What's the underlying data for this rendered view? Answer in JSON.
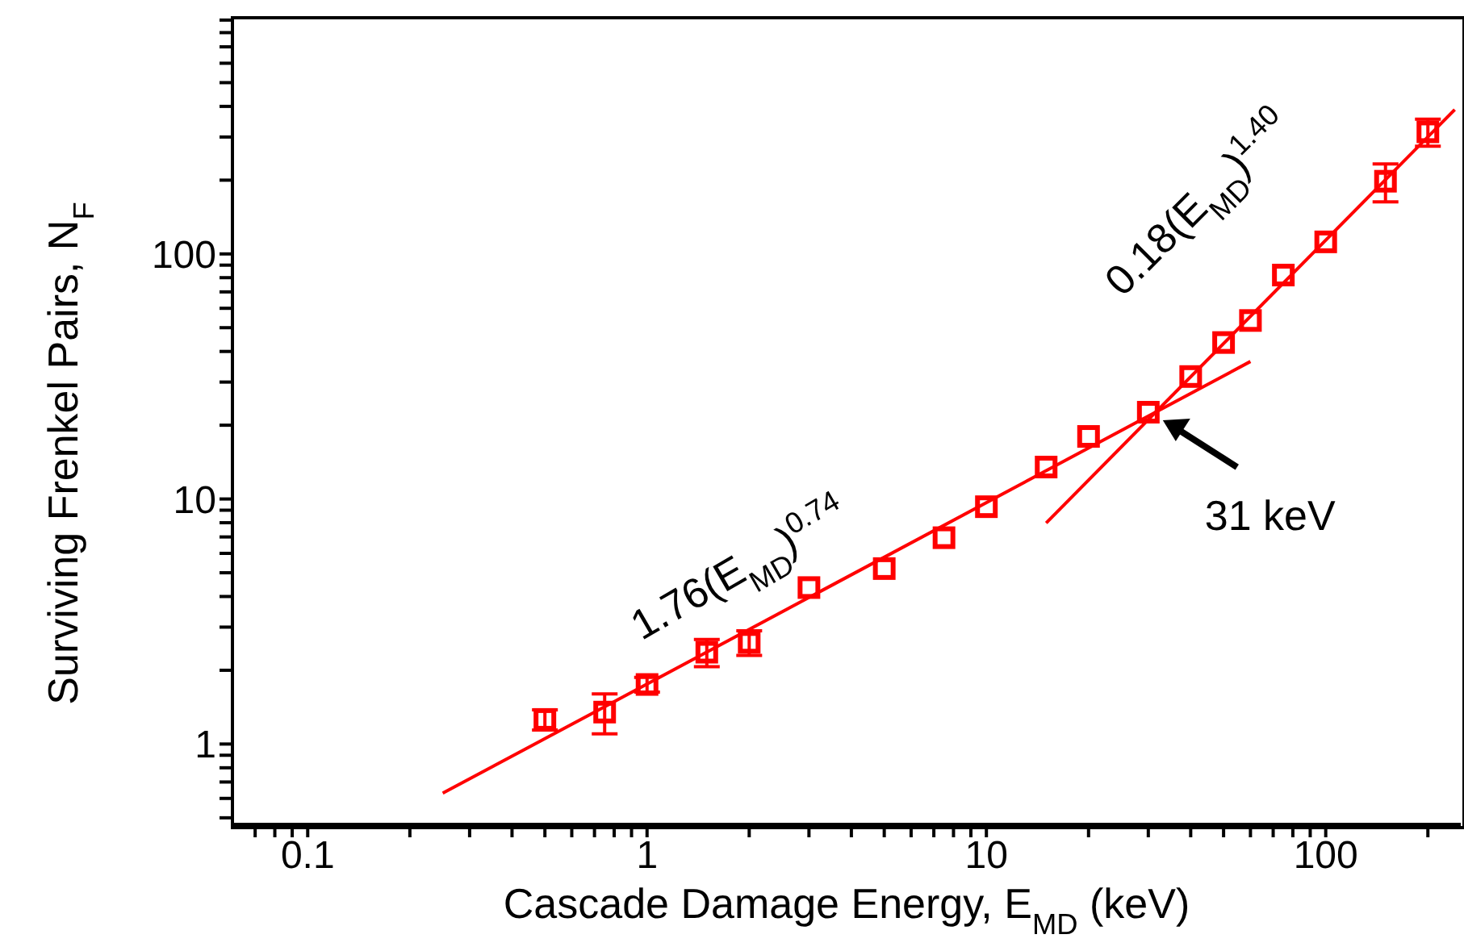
{
  "chart_data": {
    "type": "scatter",
    "xlabel": "Cascade Damage Energy, E$_{MD}$ (keV)",
    "ylabel": "Surviving Frenkel Pairs, N$_{F}$",
    "log": "xy",
    "xlim": [
      0.06,
      250
    ],
    "ylim": [
      0.47,
      920
    ],
    "xticks": [
      {
        "value": 0.07,
        "label": null
      },
      {
        "value": 0.08,
        "label": null
      },
      {
        "value": 0.09,
        "label": null
      },
      0.1,
      {
        "value": 0.2,
        "label": null
      },
      {
        "value": 0.3,
        "label": null
      },
      {
        "value": 0.4,
        "label": null
      },
      {
        "value": 0.5,
        "label": null
      },
      {
        "value": 0.6,
        "label": null
      },
      {
        "value": 0.7,
        "label": null
      },
      {
        "value": 0.8,
        "label": null
      },
      {
        "value": 0.9,
        "label": null
      },
      1,
      {
        "value": 2,
        "label": null
      },
      {
        "value": 3,
        "label": null
      },
      {
        "value": 4,
        "label": null
      },
      {
        "value": 5,
        "label": null
      },
      {
        "value": 6,
        "label": null
      },
      {
        "value": 7,
        "label": null
      },
      {
        "value": 8,
        "label": null
      },
      {
        "value": 9,
        "label": null
      },
      10,
      {
        "value": 20,
        "label": null
      },
      {
        "value": 30,
        "label": null
      },
      {
        "value": 40,
        "label": null
      },
      {
        "value": 50,
        "label": null
      },
      {
        "value": 60,
        "label": null
      },
      {
        "value": 70,
        "label": null
      },
      {
        "value": 80,
        "label": null
      },
      {
        "value": 90,
        "label": null
      },
      100,
      {
        "value": 200,
        "label": null
      }
    ],
    "yticks": [
      {
        "value": 0.5,
        "label": null
      },
      {
        "value": 0.6,
        "label": null
      },
      {
        "value": 0.7,
        "label": null
      },
      {
        "value": 0.8,
        "label": null
      },
      {
        "value": 0.9,
        "label": null
      },
      1,
      {
        "value": 2,
        "label": null
      },
      {
        "value": 3,
        "label": null
      },
      {
        "value": 4,
        "label": null
      },
      {
        "value": 5,
        "label": null
      },
      {
        "value": 6,
        "label": null
      },
      {
        "value": 7,
        "label": null
      },
      {
        "value": 8,
        "label": null
      },
      {
        "value": 9,
        "label": null
      },
      10,
      {
        "value": 20,
        "label": null
      },
      {
        "value": 30,
        "label": null
      },
      {
        "value": 40,
        "label": null
      },
      {
        "value": 50,
        "label": null
      },
      {
        "value": 60,
        "label": null
      },
      {
        "value": 70,
        "label": null
      },
      {
        "value": 80,
        "label": null
      },
      {
        "value": 90,
        "label": null
      },
      100,
      {
        "value": 200,
        "label": null
      },
      {
        "value": 300,
        "label": null
      },
      {
        "value": 400,
        "label": null
      },
      {
        "value": 500,
        "label": null
      },
      {
        "value": 600,
        "label": null
      },
      {
        "value": 700,
        "label": null
      },
      {
        "value": 800,
        "label": null
      },
      {
        "value": 900,
        "label": null
      }
    ],
    "series": [
      {
        "marker": "square",
        "color": "#ff0000",
        "x": [
          0.5,
          0.75,
          1,
          1.5,
          2,
          3,
          5,
          7.5,
          10,
          15,
          20,
          30,
          40,
          50,
          60,
          75,
          100,
          150,
          200
        ],
        "values": [
          1.26,
          1.35,
          1.75,
          2.37,
          2.6,
          4.35,
          5.2,
          6.95,
          9.3,
          13.5,
          18,
          22.6,
          31.6,
          43.5,
          53.5,
          82,
          112,
          198,
          315
        ],
        "errors": [
          0.12,
          0.25,
          0.12,
          0.3,
          0.3,
          null,
          null,
          null,
          null,
          null,
          null,
          null,
          null,
          null,
          null,
          null,
          null,
          35,
          40
        ]
      },
      {
        "type": "line",
        "marker": "none",
        "color": "#ff0000",
        "x": [
          0.25,
          60
        ],
        "values": [
          0.63,
          36.4
        ]
      },
      {
        "type": "line",
        "marker": "none",
        "color": "#ff0000",
        "x": [
          15,
          240
        ],
        "values": [
          7.98,
          388
        ]
      }
    ],
    "annotations": [
      "1.76(E$_{MD}$)$^{0.74}$",
      "0.18(E$_{MD}$)$^{1.40}$",
      {
        "text": "31 keV",
        "x": 31,
        "y": 22.6
      }
    ]
  }
}
